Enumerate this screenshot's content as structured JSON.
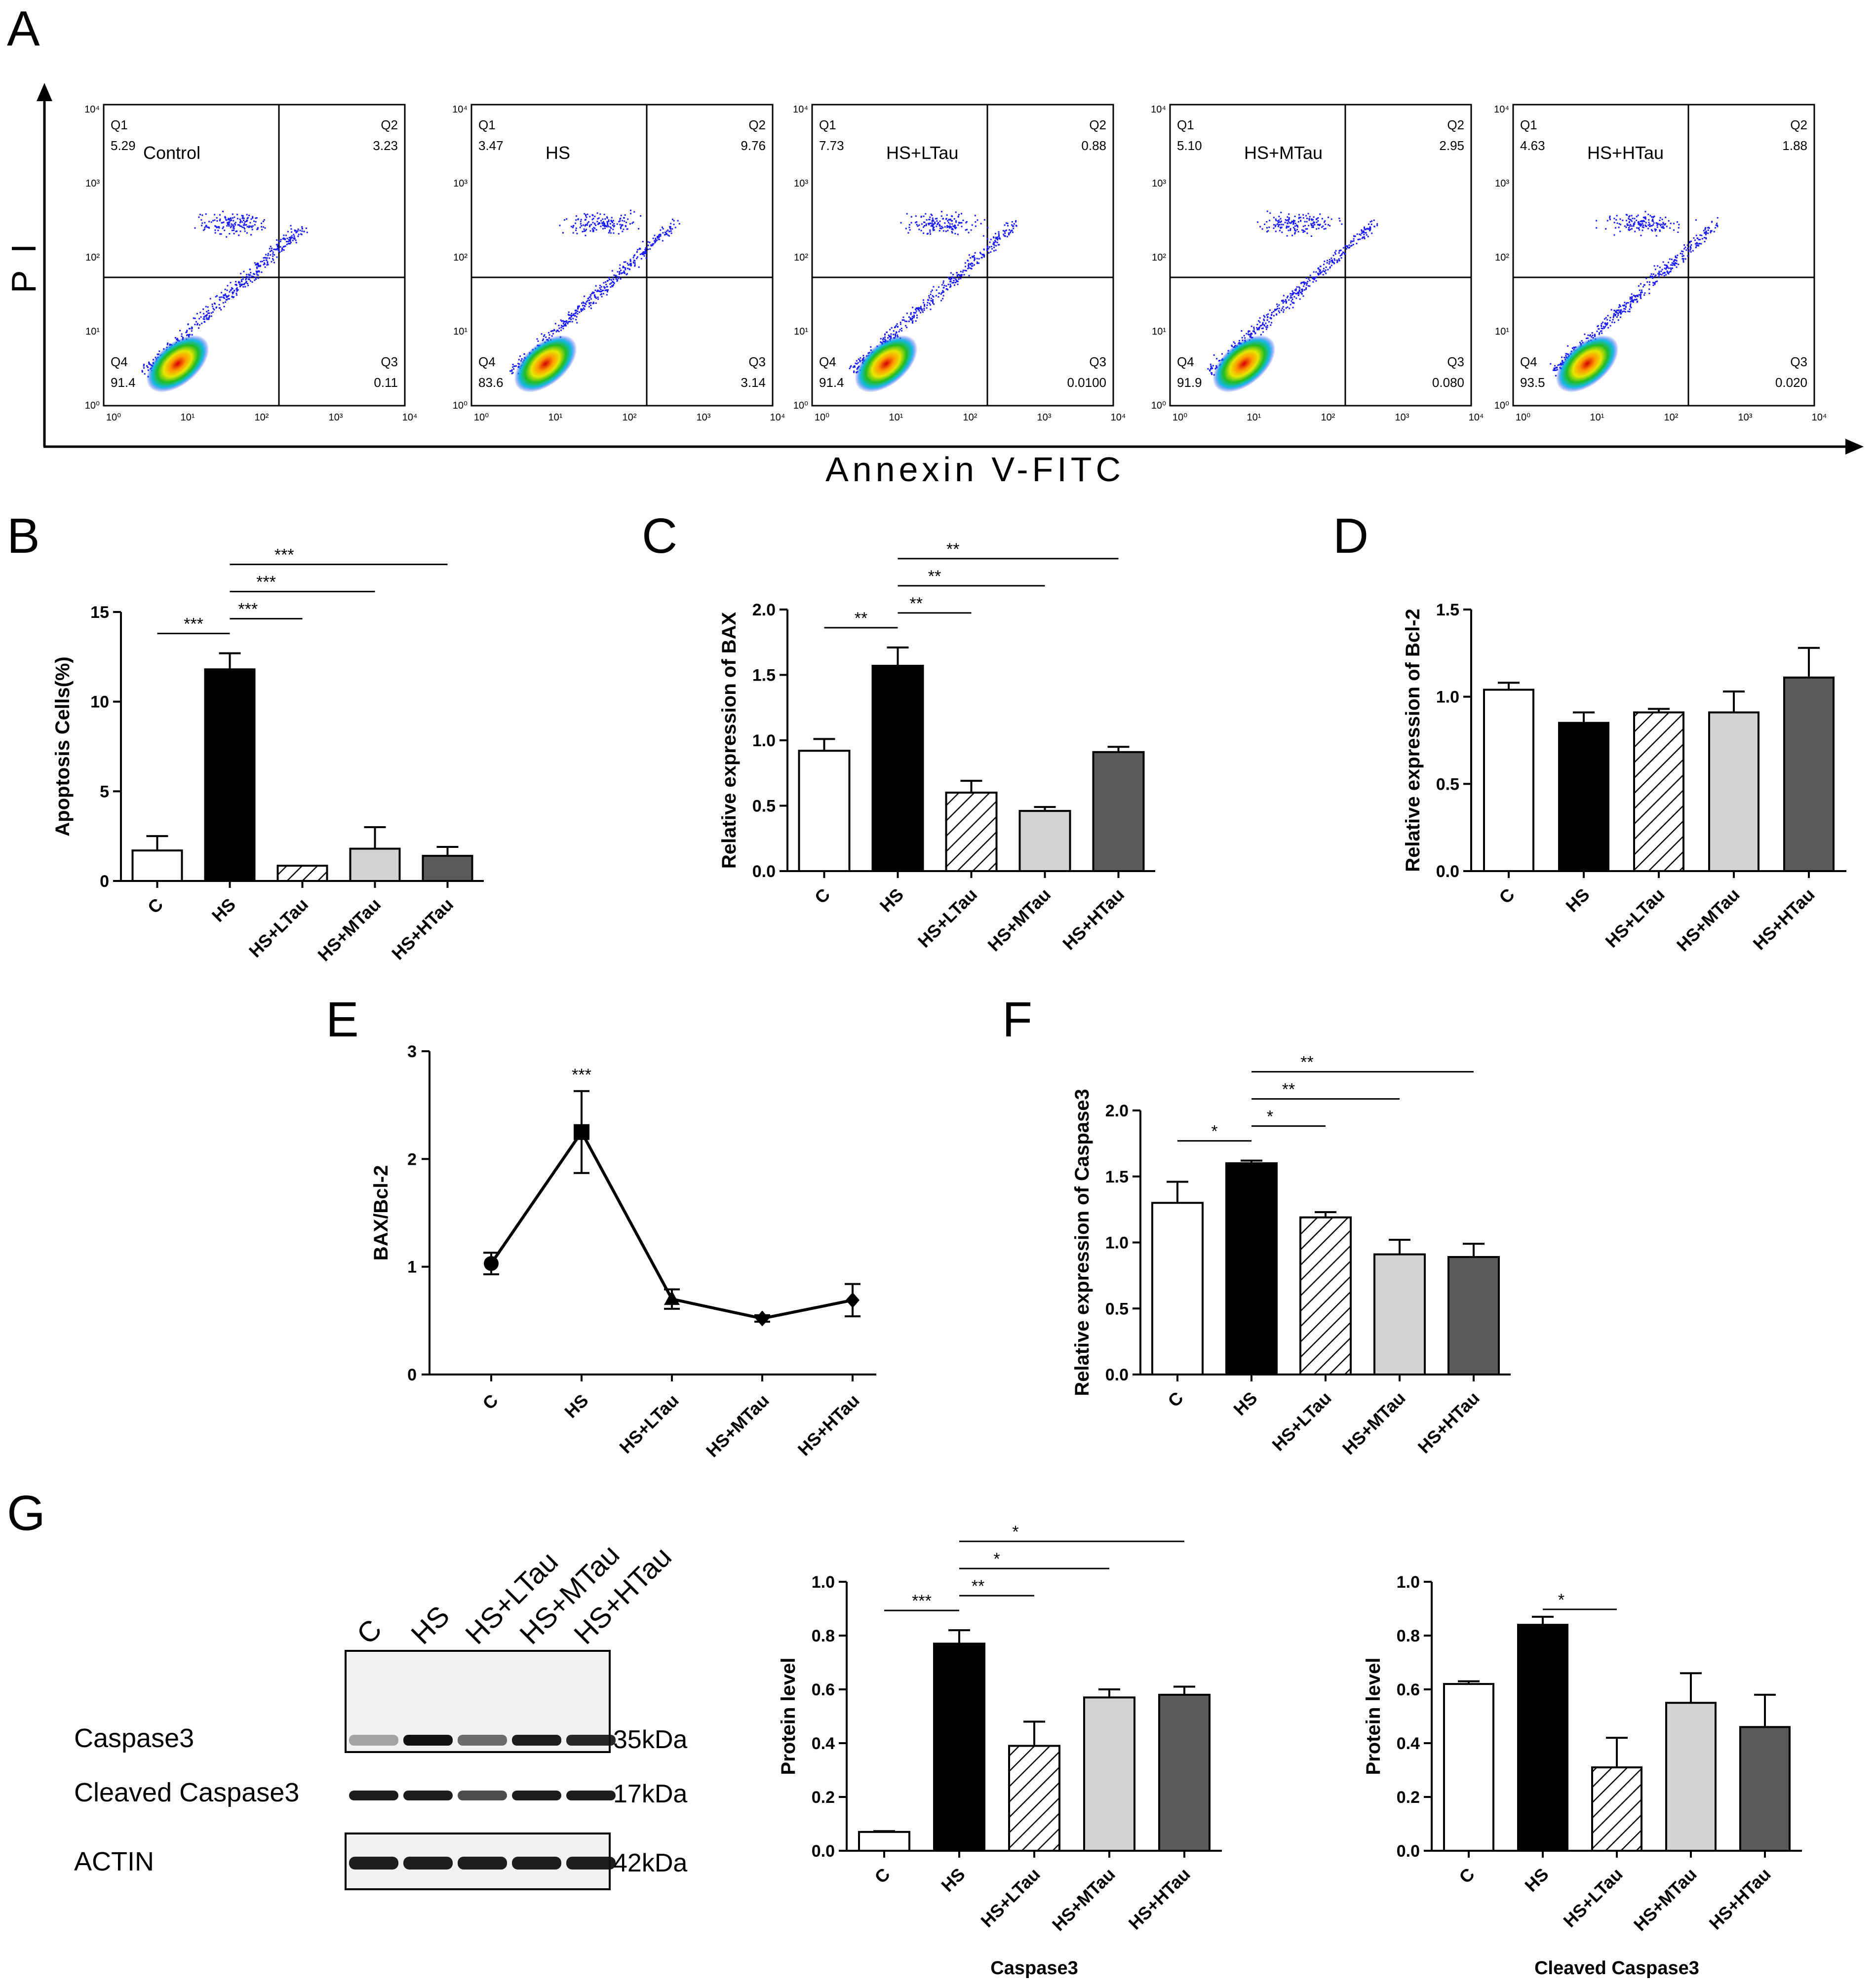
{
  "panel_letters": {
    "A": "A",
    "B": "B",
    "C": "C",
    "D": "D",
    "E": "E",
    "F": "F",
    "G": "G"
  },
  "colors": {
    "C": "#ffffff",
    "HS": "#000000",
    "HS+LTau": "hatch",
    "HS+MTau": "#d3d3d3",
    "HS+HTau": "#5a5a5a",
    "dots": "#1a1aff"
  },
  "flow": {
    "y_axis_label": "P I",
    "x_axis_label": "Annexin  V-FITC",
    "tick_labels": [
      "10⁰",
      "10¹",
      "10²",
      "10³",
      "10⁴"
    ],
    "panels": [
      {
        "name": "Control",
        "Q1": "5.29",
        "Q2": "3.23",
        "Q3": "0.11",
        "Q4": "91.4"
      },
      {
        "name": "HS",
        "Q1": "3.47",
        "Q2": "9.76",
        "Q3": "3.14",
        "Q4": "83.6"
      },
      {
        "name": "HS+LTau",
        "Q1": "7.73",
        "Q2": "0.88",
        "Q3": "0.0100",
        "Q4": "91.4"
      },
      {
        "name": "HS+MTau",
        "Q1": "5.10",
        "Q2": "2.95",
        "Q3": "0.080",
        "Q4": "91.9"
      },
      {
        "name": "HS+HTau",
        "Q1": "4.63",
        "Q2": "1.88",
        "Q3": "0.020",
        "Q4": "93.5"
      }
    ],
    "quadrant_labels": [
      "Q1",
      "Q2",
      "Q3",
      "Q4"
    ]
  },
  "blot": {
    "lanes": [
      "C",
      "HS",
      "HS+LTau",
      "HS+MTau",
      "HS+HTau"
    ],
    "rows": [
      {
        "label": "Caspase3",
        "kda": "35kDa"
      },
      {
        "label": "Cleaved Caspase3",
        "kda": "17kDa"
      },
      {
        "label": "ACTIN",
        "kda": "42kDa"
      }
    ]
  },
  "chart_data": [
    {
      "id": "B",
      "type": "bar",
      "categories": [
        "C",
        "HS",
        "HS+LTau",
        "HS+MTau",
        "HS+HTau"
      ],
      "values": [
        1.7,
        11.8,
        0.85,
        1.8,
        1.4
      ],
      "errors": [
        0.8,
        0.9,
        0,
        1.2,
        0.5
      ],
      "ylabel": "Apoptosis Cells(%)",
      "xlabel": "",
      "ylim": [
        0,
        15
      ],
      "yticks": [
        0,
        5,
        10,
        15
      ],
      "tick_labels": [
        "0",
        "5",
        "10",
        "15"
      ],
      "significance": [
        {
          "from": 0,
          "to": 1,
          "label": "***"
        },
        {
          "from": 1,
          "to": 2,
          "label": "***"
        },
        {
          "from": 1,
          "to": 3,
          "label": "***"
        },
        {
          "from": 1,
          "to": 4,
          "label": "***"
        }
      ]
    },
    {
      "id": "C",
      "type": "bar",
      "categories": [
        "C",
        "HS",
        "HS+LTau",
        "HS+MTau",
        "HS+HTau"
      ],
      "values": [
        0.92,
        1.57,
        0.6,
        0.46,
        0.91
      ],
      "errors": [
        0.09,
        0.14,
        0.09,
        0.03,
        0.04
      ],
      "ylabel": "Relative expression of BAX",
      "xlabel": "",
      "ylim": [
        0,
        2.0
      ],
      "yticks": [
        0,
        0.5,
        1.0,
        1.5,
        2.0
      ],
      "tick_labels": [
        "0.0",
        "0.5",
        "1.0",
        "1.5",
        "2.0"
      ],
      "significance": [
        {
          "from": 0,
          "to": 1,
          "label": "**"
        },
        {
          "from": 1,
          "to": 2,
          "label": "**"
        },
        {
          "from": 1,
          "to": 3,
          "label": "**"
        },
        {
          "from": 1,
          "to": 4,
          "label": "**"
        }
      ]
    },
    {
      "id": "D",
      "type": "bar",
      "categories": [
        "C",
        "HS",
        "HS+LTau",
        "HS+MTau",
        "HS+HTau"
      ],
      "values": [
        1.04,
        0.85,
        0.91,
        0.91,
        1.11
      ],
      "errors": [
        0.04,
        0.06,
        0.02,
        0.12,
        0.17
      ],
      "ylabel": "Relative expression of Bcl-2",
      "xlabel": "",
      "ylim": [
        0,
        1.5
      ],
      "yticks": [
        0,
        0.5,
        1.0,
        1.5
      ],
      "tick_labels": [
        "0.0",
        "0.5",
        "1.0",
        "1.5"
      ],
      "significance": []
    },
    {
      "id": "E",
      "type": "line",
      "categories": [
        "C",
        "HS",
        "HS+LTau",
        "HS+MTau",
        "HS+HTau"
      ],
      "values": [
        1.03,
        2.25,
        0.7,
        0.52,
        0.69
      ],
      "errors": [
        0.1,
        0.38,
        0.09,
        0.03,
        0.15
      ],
      "markers": [
        "circle",
        "square",
        "triangle",
        "diamond",
        "diamond"
      ],
      "ylabel": "BAX/Bcl-2",
      "xlabel": "",
      "ylim": [
        0,
        3
      ],
      "yticks": [
        0,
        1,
        2,
        3
      ],
      "tick_labels": [
        "0",
        "1",
        "2",
        "3"
      ],
      "point_annotations": [
        {
          "index": 1,
          "label": "***"
        }
      ]
    },
    {
      "id": "F",
      "type": "bar",
      "categories": [
        "C",
        "HS",
        "HS+LTau",
        "HS+MTau",
        "HS+HTau"
      ],
      "values": [
        1.3,
        1.6,
        1.19,
        0.91,
        0.89
      ],
      "errors": [
        0.16,
        0.02,
        0.04,
        0.11,
        0.1
      ],
      "ylabel": "Relative expression of Caspase3",
      "xlabel": "",
      "ylim": [
        0,
        2.0
      ],
      "yticks": [
        0,
        0.5,
        1.0,
        1.5,
        2.0
      ],
      "tick_labels": [
        "0.0",
        "0.5",
        "1.0",
        "1.5",
        "2.0"
      ],
      "significance": [
        {
          "from": 0,
          "to": 1,
          "label": "*"
        },
        {
          "from": 1,
          "to": 2,
          "label": "*"
        },
        {
          "from": 1,
          "to": 3,
          "label": "**"
        },
        {
          "from": 1,
          "to": 4,
          "label": "**"
        }
      ]
    },
    {
      "id": "G1",
      "type": "bar",
      "categories": [
        "C",
        "HS",
        "HS+LTau",
        "HS+MTau",
        "HS+HTau"
      ],
      "values": [
        0.07,
        0.77,
        0.39,
        0.57,
        0.58
      ],
      "errors": [
        0.003,
        0.05,
        0.09,
        0.03,
        0.03
      ],
      "ylabel": "Protein level",
      "xlabel": "Caspase3",
      "ylim": [
        0,
        1.0
      ],
      "yticks": [
        0,
        0.2,
        0.4,
        0.6,
        0.8,
        1.0
      ],
      "tick_labels": [
        "0.0",
        "0.2",
        "0.4",
        "0.6",
        "0.8",
        "1.0"
      ],
      "significance": [
        {
          "from": 0,
          "to": 1,
          "label": "***"
        },
        {
          "from": 1,
          "to": 2,
          "label": "**"
        },
        {
          "from": 1,
          "to": 3,
          "label": "*"
        },
        {
          "from": 1,
          "to": 4,
          "label": "*"
        }
      ]
    },
    {
      "id": "G2",
      "type": "bar",
      "categories": [
        "C",
        "HS",
        "HS+LTau",
        "HS+MTau",
        "HS+HTau"
      ],
      "values": [
        0.62,
        0.84,
        0.31,
        0.55,
        0.46
      ],
      "errors": [
        0.01,
        0.03,
        0.11,
        0.11,
        0.12
      ],
      "ylabel": "Protein level",
      "xlabel": "Cleaved Caspase3",
      "ylim": [
        0,
        1.0
      ],
      "yticks": [
        0,
        0.2,
        0.4,
        0.6,
        0.8,
        1.0
      ],
      "tick_labels": [
        "0.0",
        "0.2",
        "0.4",
        "0.6",
        "0.8",
        "1.0"
      ],
      "significance": [
        {
          "from": 1,
          "to": 2,
          "label": "*"
        }
      ]
    }
  ]
}
